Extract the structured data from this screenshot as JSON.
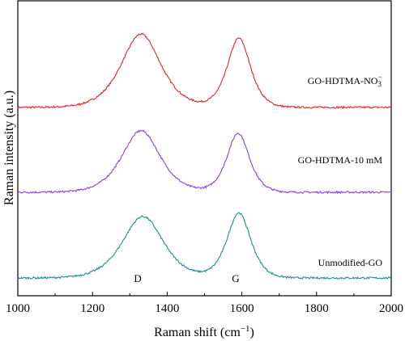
{
  "chart_data": {
    "type": "line",
    "title": "",
    "xlabel": "Raman shift (cm",
    "xlabel_sup": "−1",
    "xlabel_end": ")",
    "ylabel": "Raman intensity (a.u.)",
    "xlim": [
      1000,
      2000
    ],
    "xticks": [
      1000,
      1200,
      1400,
      1600,
      1800,
      2000
    ],
    "tick_labels": [
      "1000",
      "1200",
      "1400",
      "1600",
      "1800",
      "2000"
    ],
    "yticks_shown": false,
    "grid": false,
    "legend": "none",
    "series": [
      {
        "name": "GO-HDTMA-NO",
        "name_sub": "3",
        "name_sup": "−",
        "color": "#e8262a",
        "offset": 2.0,
        "baseline": 0.12,
        "peaks": [
          {
            "center": 1330,
            "amplitude": 0.88,
            "width": 58
          },
          {
            "center": 1592,
            "amplitude": 0.83,
            "width": 34
          }
        ],
        "x": [
          1000,
          1100,
          1200,
          1250,
          1300,
          1330,
          1360,
          1400,
          1450,
          1500,
          1550,
          1592,
          1620,
          1650,
          1700,
          1800,
          1900,
          2000
        ],
        "values": [
          0.12,
          0.13,
          0.22,
          0.45,
          0.84,
          1.0,
          0.88,
          0.56,
          0.24,
          0.25,
          0.58,
          0.95,
          0.74,
          0.34,
          0.15,
          0.13,
          0.12,
          0.12
        ]
      },
      {
        "name": "GO-HDTMA-10 mM",
        "color": "#8a3ff0",
        "offset": 1.0,
        "baseline": 0.1,
        "peaks": [
          {
            "center": 1330,
            "amplitude": 0.74,
            "width": 56
          },
          {
            "center": 1590,
            "amplitude": 0.71,
            "width": 33
          }
        ],
        "x": [
          1000,
          1100,
          1200,
          1250,
          1300,
          1330,
          1360,
          1400,
          1450,
          1500,
          1550,
          1590,
          1620,
          1650,
          1700,
          1800,
          1900,
          2000
        ],
        "values": [
          0.1,
          0.11,
          0.18,
          0.38,
          0.7,
          0.84,
          0.74,
          0.47,
          0.21,
          0.22,
          0.5,
          0.81,
          0.62,
          0.29,
          0.12,
          0.11,
          0.1,
          0.1
        ]
      },
      {
        "name": "Unmodified-GO",
        "color": "#1f8f8c",
        "offset": 0.0,
        "baseline": 0.07,
        "peaks": [
          {
            "center": 1335,
            "amplitude": 0.74,
            "width": 60
          },
          {
            "center": 1592,
            "amplitude": 0.78,
            "width": 35
          }
        ],
        "x": [
          1000,
          1100,
          1200,
          1250,
          1300,
          1335,
          1370,
          1400,
          1450,
          1500,
          1550,
          1592,
          1620,
          1650,
          1700,
          1800,
          1900,
          2000
        ],
        "values": [
          0.07,
          0.08,
          0.15,
          0.34,
          0.66,
          0.81,
          0.7,
          0.47,
          0.19,
          0.2,
          0.5,
          0.85,
          0.65,
          0.3,
          0.1,
          0.09,
          0.08,
          0.08
        ]
      }
    ],
    "annotations": [
      {
        "text": "D",
        "x": 1330
      },
      {
        "text": "G",
        "x": 1592
      }
    ]
  }
}
